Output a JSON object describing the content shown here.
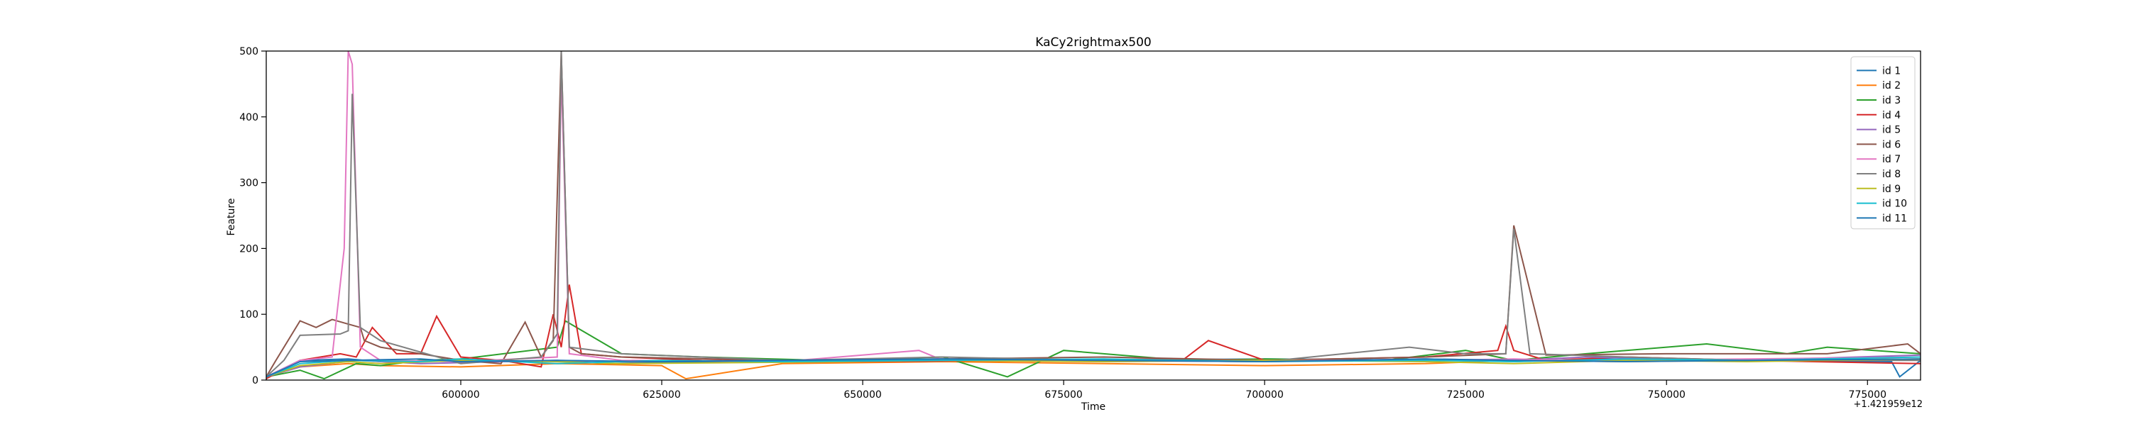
{
  "chart_data": {
    "type": "line",
    "title": "KaCy2rightmax500",
    "xlabel": "Time",
    "ylabel": "Feature",
    "x_offset_label": "+1.421959e12",
    "xlim": [
      575800,
      781600
    ],
    "ylim": [
      0,
      500
    ],
    "x_ticks": [
      600000,
      625000,
      650000,
      675000,
      700000,
      725000,
      750000,
      775000
    ],
    "x_tick_labels": [
      "600000",
      "625000",
      "650000",
      "675000",
      "700000",
      "725000",
      "750000",
      "775000"
    ],
    "y_ticks": [
      0,
      100,
      200,
      300,
      400,
      500
    ],
    "y_tick_labels": [
      "0",
      "100",
      "200",
      "300",
      "400",
      "500"
    ],
    "grid": false,
    "legend_position": "top-right",
    "series": [
      {
        "name": "id 1",
        "color": "#1f77b4",
        "x": [
          575800,
          580000,
          586000,
          590000,
          600000,
          606000,
          612000,
          618000,
          630000,
          650000,
          675000,
          700000,
          725000,
          731000,
          740000,
          760000,
          778000,
          779000,
          781600
        ],
        "values": [
          5,
          30,
          32,
          28,
          30,
          28,
          30,
          25,
          28,
          27,
          30,
          32,
          30,
          28,
          32,
          30,
          28,
          5,
          30
        ]
      },
      {
        "name": "id 2",
        "color": "#ff7f0e",
        "x": [
          575800,
          580000,
          586000,
          590000,
          600000,
          612000,
          625000,
          628000,
          640000,
          660000,
          680000,
          700000,
          720000,
          731000,
          745000,
          760000,
          781600
        ],
        "values": [
          5,
          20,
          25,
          22,
          20,
          25,
          22,
          2,
          25,
          28,
          25,
          22,
          25,
          30,
          28,
          30,
          32
        ]
      },
      {
        "name": "id 3",
        "color": "#2ca02c",
        "x": [
          575800,
          580000,
          583000,
          587000,
          590000,
          595000,
          600000,
          612000,
          613000,
          620000,
          630000,
          645000,
          660000,
          668000,
          675000,
          690000,
          700000,
          715000,
          725000,
          731000,
          740000,
          750000,
          755000,
          765000,
          770000,
          781600
        ],
        "values": [
          5,
          15,
          2,
          25,
          22,
          30,
          32,
          50,
          90,
          40,
          35,
          30,
          35,
          5,
          45,
          30,
          32,
          30,
          45,
          30,
          40,
          50,
          55,
          40,
          50,
          40
        ]
      },
      {
        "name": "id 4",
        "color": "#d62728",
        "x": [
          575800,
          580000,
          585000,
          587000,
          589000,
          592000,
          595000,
          597000,
          600000,
          605000,
          610000,
          611500,
          612500,
          613500,
          615000,
          620000,
          630000,
          650000,
          670000,
          690000,
          693000,
          700000,
          720000,
          729000,
          730000,
          731000,
          735000,
          745000,
          760000,
          781600
        ],
        "values": [
          2,
          30,
          40,
          35,
          80,
          40,
          40,
          97,
          35,
          30,
          20,
          100,
          50,
          145,
          40,
          35,
          30,
          28,
          30,
          32,
          60,
          30,
          35,
          45,
          82,
          45,
          30,
          35,
          30,
          25
        ]
      },
      {
        "name": "id 5",
        "color": "#9467bd",
        "x": [
          575800,
          580000,
          587000,
          595000,
          605000,
          612000,
          620000,
          640000,
          660000,
          680000,
          700000,
          720000,
          731000,
          740000,
          760000,
          781600
        ],
        "values": [
          5,
          20,
          30,
          25,
          28,
          30,
          28,
          30,
          32,
          30,
          28,
          32,
          30,
          35,
          30,
          38
        ]
      },
      {
        "name": "id 6",
        "color": "#8c564b",
        "x": [
          575800,
          577000,
          580000,
          582000,
          584000,
          586000,
          587500,
          588000,
          590000,
          595000,
          600000,
          605000,
          608000,
          610000,
          611500,
          612500,
          613500,
          615000,
          620000,
          640000,
          660000,
          680000,
          700000,
          720000,
          730000,
          731000,
          735000,
          750000,
          770000,
          780000,
          781600
        ],
        "values": [
          5,
          30,
          90,
          80,
          92,
          85,
          80,
          60,
          50,
          40,
          30,
          25,
          88,
          35,
          60,
          500,
          50,
          40,
          35,
          30,
          32,
          35,
          30,
          35,
          40,
          235,
          38,
          40,
          40,
          55,
          40
        ]
      },
      {
        "name": "id 7",
        "color": "#e377c2",
        "x": [
          575800,
          580000,
          584000,
          585500,
          586000,
          586500,
          587500,
          590000,
          600000,
          612000,
          612500,
          613500,
          620000,
          640000,
          657000,
          660000,
          680000,
          700000,
          720000,
          731000,
          740000,
          760000,
          781600
        ],
        "values": [
          5,
          30,
          35,
          200,
          500,
          480,
          50,
          30,
          28,
          35,
          470,
          40,
          30,
          28,
          45,
          30,
          28,
          30,
          30,
          32,
          30,
          32,
          35
        ]
      },
      {
        "name": "id 8",
        "color": "#7f7f7f",
        "x": [
          575800,
          578000,
          580000,
          585000,
          586000,
          586500,
          587500,
          590000,
          600000,
          605000,
          610000,
          612000,
          612500,
          613500,
          620000,
          640000,
          660000,
          680000,
          700000,
          718000,
          725000,
          730000,
          731000,
          733000,
          745000,
          760000,
          781600
        ],
        "values": [
          5,
          30,
          68,
          70,
          75,
          435,
          80,
          60,
          25,
          30,
          35,
          70,
          500,
          50,
          40,
          30,
          35,
          30,
          28,
          50,
          40,
          40,
          230,
          40,
          35,
          30,
          30
        ]
      },
      {
        "name": "id 9",
        "color": "#bcbd22",
        "x": [
          575800,
          580000,
          586000,
          590000,
          600000,
          612000,
          620000,
          640000,
          660000,
          680000,
          700000,
          720000,
          731000,
          745000,
          760000,
          781600
        ],
        "values": [
          5,
          22,
          28,
          25,
          30,
          28,
          25,
          27,
          30,
          28,
          30,
          28,
          25,
          30,
          28,
          32
        ]
      },
      {
        "name": "id 10",
        "color": "#17becf",
        "x": [
          575800,
          580000,
          586000,
          595000,
          600000,
          612000,
          625000,
          640000,
          660000,
          680000,
          700000,
          720000,
          731000,
          745000,
          760000,
          781600
        ],
        "values": [
          5,
          25,
          30,
          28,
          32,
          25,
          30,
          28,
          30,
          32,
          28,
          30,
          28,
          32,
          30,
          35
        ]
      },
      {
        "name": "id 11",
        "color": "#1f77b4",
        "x": [
          575800,
          580000,
          586000,
          595000,
          600000,
          612000,
          625000,
          640000,
          660000,
          680000,
          700000,
          720000,
          731000,
          745000,
          760000,
          781600
        ],
        "values": [
          5,
          28,
          30,
          32,
          28,
          30,
          28,
          30,
          32,
          30,
          28,
          32,
          30,
          28,
          30,
          32
        ]
      }
    ]
  }
}
